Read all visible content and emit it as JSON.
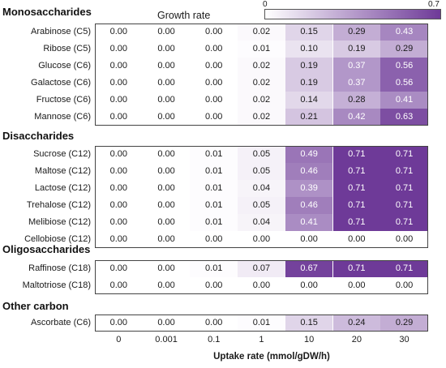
{
  "chart_data": {
    "type": "heatmap",
    "title": "",
    "legend_title": "Growth rate",
    "colorbar": {
      "min": 0,
      "max": 0.7,
      "min_label": "0",
      "max_label": "0.7",
      "low_color": "#ffffff",
      "high_color": "#6e3a98"
    },
    "xlabel": "Uptake rate (mmol/gDW/h)",
    "x": [
      "0",
      "0.001",
      "0.1",
      "1",
      "10",
      "20",
      "30"
    ],
    "groups": [
      {
        "name": "Monosaccharides",
        "rows": [
          {
            "label": "Arabinose (C5)",
            "values": [
              0.0,
              0.0,
              0.0,
              0.02,
              0.15,
              0.29,
              0.43
            ]
          },
          {
            "label": "Ribose (C5)",
            "values": [
              0.0,
              0.0,
              0.0,
              0.01,
              0.1,
              0.19,
              0.29
            ]
          },
          {
            "label": "Glucose (C6)",
            "values": [
              0.0,
              0.0,
              0.0,
              0.02,
              0.19,
              0.37,
              0.56
            ]
          },
          {
            "label": "Galactose (C6)",
            "values": [
              0.0,
              0.0,
              0.0,
              0.02,
              0.19,
              0.37,
              0.56
            ]
          },
          {
            "label": "Fructose (C6)",
            "values": [
              0.0,
              0.0,
              0.0,
              0.02,
              0.14,
              0.28,
              0.41
            ]
          },
          {
            "label": "Mannose (C6)",
            "values": [
              0.0,
              0.0,
              0.0,
              0.02,
              0.21,
              0.42,
              0.63
            ]
          }
        ]
      },
      {
        "name": "Disaccharides",
        "rows": [
          {
            "label": "Sucrose (C12)",
            "values": [
              0.0,
              0.0,
              0.01,
              0.05,
              0.49,
              0.71,
              0.71
            ]
          },
          {
            "label": "Maltose (C12)",
            "values": [
              0.0,
              0.0,
              0.01,
              0.05,
              0.46,
              0.71,
              0.71
            ]
          },
          {
            "label": "Lactose (C12)",
            "values": [
              0.0,
              0.0,
              0.01,
              0.04,
              0.39,
              0.71,
              0.71
            ]
          },
          {
            "label": "Trehalose (C12)",
            "values": [
              0.0,
              0.0,
              0.01,
              0.05,
              0.46,
              0.71,
              0.71
            ]
          },
          {
            "label": "Melibiose (C12)",
            "values": [
              0.0,
              0.0,
              0.01,
              0.04,
              0.41,
              0.71,
              0.71
            ]
          },
          {
            "label": "Cellobiose (C12)",
            "values": [
              0.0,
              0.0,
              0.0,
              0.0,
              0.0,
              0.0,
              0.0
            ]
          }
        ]
      },
      {
        "name": "Oligosaccharides",
        "rows": [
          {
            "label": "Raffinose (C18)",
            "values": [
              0.0,
              0.0,
              0.01,
              0.07,
              0.67,
              0.71,
              0.71
            ]
          },
          {
            "label": "Maltotriose (C18)",
            "values": [
              0.0,
              0.0,
              0.0,
              0.0,
              0.0,
              0.0,
              0.0
            ]
          }
        ]
      },
      {
        "name": "Other carbon",
        "rows": [
          {
            "label": "Ascorbate (C6)",
            "values": [
              0.0,
              0.0,
              0.0,
              0.01,
              0.15,
              0.24,
              0.29
            ]
          }
        ]
      }
    ]
  }
}
